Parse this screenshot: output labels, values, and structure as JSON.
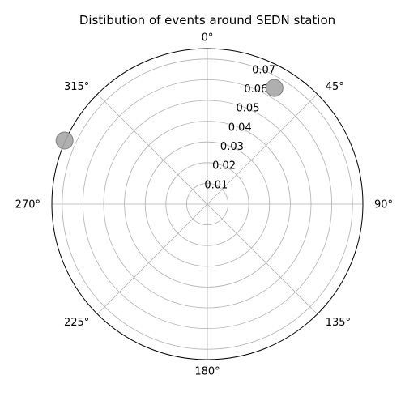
{
  "chart_data": {
    "type": "scatter",
    "projection": "polar",
    "title": "Distibution of events around SEDN station",
    "theta_zero_location": "N",
    "theta_direction": "clockwise",
    "theta_ticks": [
      "0°",
      "45°",
      "90°",
      "135°",
      "180°",
      "225°",
      "270°",
      "315°"
    ],
    "theta_tick_degrees": [
      0,
      45,
      90,
      135,
      180,
      225,
      270,
      315
    ],
    "r_ticks": [
      0.01,
      0.02,
      0.03,
      0.04,
      0.05,
      0.06,
      0.07
    ],
    "r_tick_labels": [
      "0.01",
      "0.02",
      "0.03",
      "0.04",
      "0.05",
      "0.06",
      "0.07"
    ],
    "rlim": [
      0,
      0.075
    ],
    "grid": true,
    "points": [
      {
        "theta_deg": 30,
        "r": 0.0647
      },
      {
        "theta_deg": 294,
        "r": 0.0754
      }
    ],
    "colors": {
      "marker_fill": "#a6a6a6",
      "marker_edge": "#7f7f7f",
      "grid": "#b0b0b0",
      "spine": "#000000"
    }
  }
}
